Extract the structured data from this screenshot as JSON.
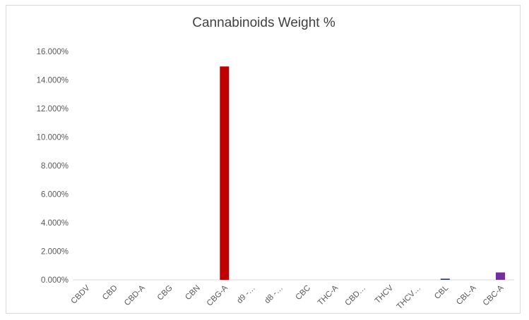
{
  "chart_data": {
    "type": "bar",
    "title": "Cannabinoids Weight %",
    "xlabel": "",
    "ylabel": "",
    "categories": [
      "CBDV",
      "CBD",
      "CBD-A",
      "CBG",
      "CBN",
      "CBG-A",
      "d9 -…",
      "d8 -…",
      "CBC",
      "THC-A",
      "CBD…",
      "THCV",
      "THCV…",
      "CBL",
      "CBL-A",
      "CBC-A"
    ],
    "values": [
      0,
      0,
      0,
      0,
      0,
      14.95,
      0,
      0,
      0,
      0,
      0,
      0,
      0,
      0.08,
      0,
      0.52
    ],
    "bar_colors": [
      "#4472c4",
      "#ed7d31",
      "#a5a5a5",
      "#ffc000",
      "#5b9bd5",
      "#c00000",
      "#264478",
      "#9e480e",
      "#636363",
      "#997300",
      "#255e91",
      "#43682b",
      "#698ed0",
      "#1f3864",
      "#ff5f5f",
      "#7030a0"
    ],
    "ylim": [
      0,
      16
    ],
    "yticks": [
      "0.000%",
      "2.000%",
      "4.000%",
      "6.000%",
      "8.000%",
      "10.000%",
      "12.000%",
      "14.000%",
      "16.000%"
    ],
    "grid": false,
    "legend": "none"
  }
}
